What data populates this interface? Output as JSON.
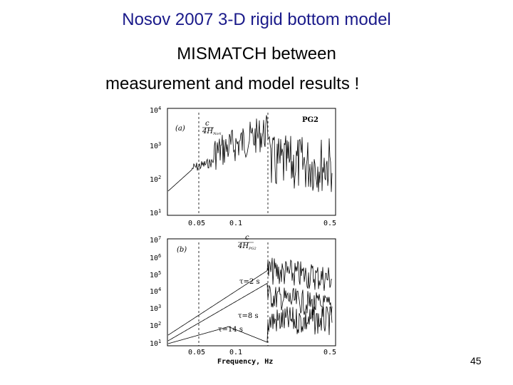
{
  "slide": {
    "title": "Nosov 2007 3-D rigid bottom model",
    "subtitle_line1": "MISMATCH between",
    "subtitle_line2": "measurement and model results !",
    "page_number": "45"
  },
  "chart_data": [
    {
      "type": "line",
      "panel_label": "(a)",
      "station": "PG2",
      "annotation": "c / 4H_Nori",
      "x_scale": "log",
      "y_scale": "log",
      "y_ticks": [
        "10^1",
        "10^2",
        "10^3",
        "10^4"
      ],
      "x_ticks": [
        "0.05",
        "0.1",
        "0.5"
      ],
      "xlim": [
        0.03,
        0.55
      ],
      "ylim": [
        10,
        10000
      ],
      "vertical_dashed_lines": [
        0.055,
        0.13
      ]
    },
    {
      "type": "line",
      "panel_label": "(b)",
      "annotation": "c / 4H_PG2",
      "x_scale": "log",
      "y_scale": "log",
      "y_ticks": [
        "10^1",
        "10^2",
        "10^3",
        "10^4",
        "10^5",
        "10^6",
        "10^7"
      ],
      "x_ticks": [
        "0.05",
        "0.1",
        "0.5"
      ],
      "xlabel": "Frequency, Hz",
      "xlim": [
        0.03,
        0.55
      ],
      "ylim": [
        10,
        10000000
      ],
      "curve_labels": [
        "τ=2 s",
        "τ=8 s",
        "τ=14 s"
      ],
      "vertical_dashed_lines": [
        0.055,
        0.13
      ]
    }
  ]
}
